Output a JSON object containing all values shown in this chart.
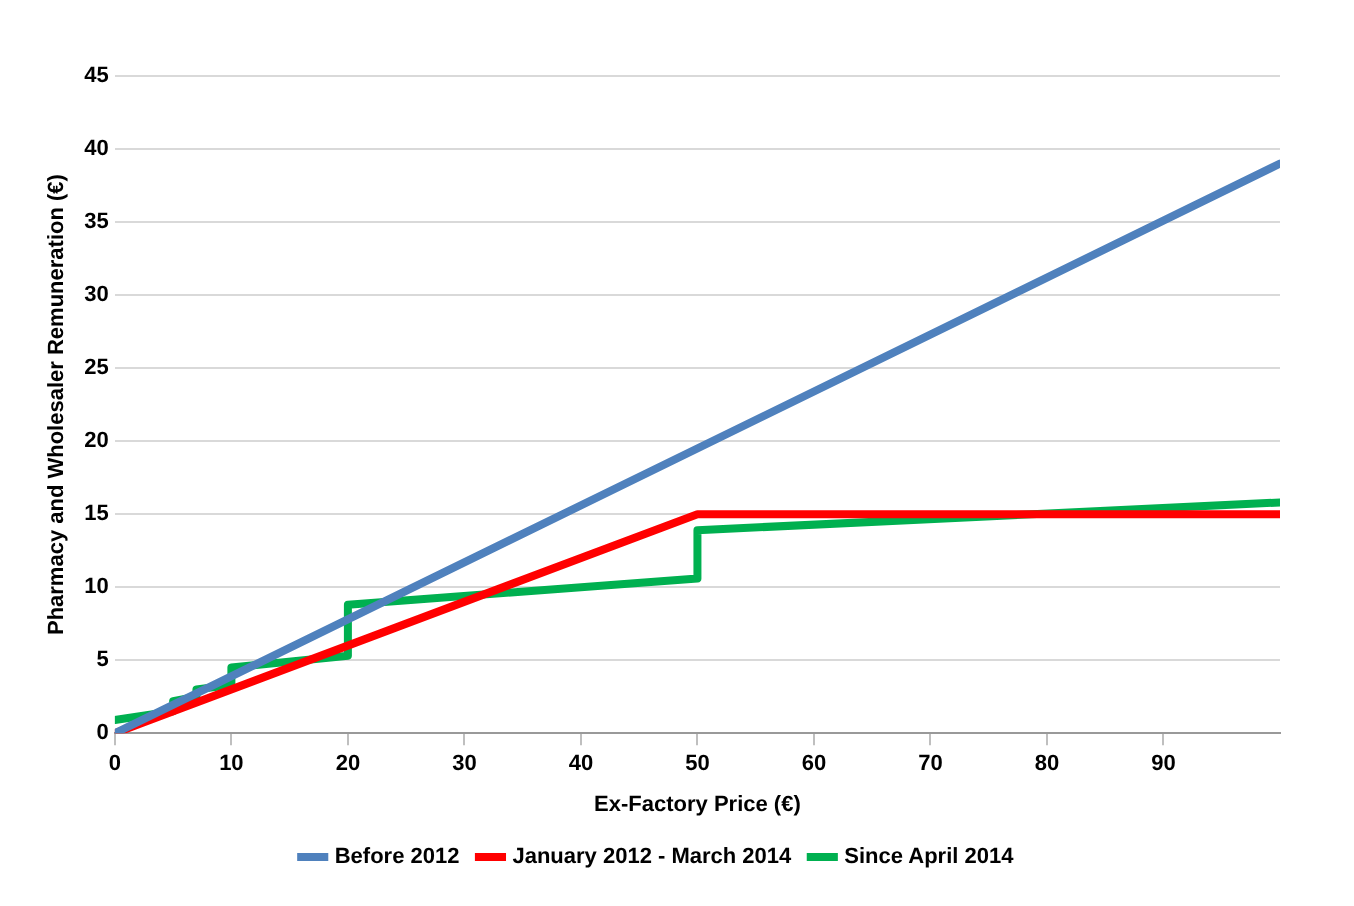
{
  "chart_data": {
    "type": "line",
    "xlabel": "Ex-Factory Price (€)",
    "ylabel": "Pharmacy and Wholesaler Remuneration (€)",
    "xlim": [
      0,
      100
    ],
    "xticks": [
      0,
      10,
      20,
      30,
      40,
      50,
      60,
      70,
      80,
      90
    ],
    "ylim": [
      0,
      45
    ],
    "yticks": [
      0,
      5,
      10,
      15,
      20,
      25,
      30,
      35,
      40,
      45
    ],
    "grid": "y",
    "legend": "bottom",
    "marker": "none",
    "line_style": "solid",
    "series": [
      {
        "name": "Before 2012",
        "color": "#4f81bd",
        "x": [
          0,
          100
        ],
        "values": [
          0,
          39
        ]
      },
      {
        "name": "January 2012 - March 2014",
        "color": "#ff0000",
        "x": [
          0,
          50,
          100
        ],
        "values": [
          0,
          15,
          15
        ]
      },
      {
        "name": "Since April 2014",
        "color": "#00b050",
        "x": [
          0,
          5,
          5,
          7,
          7,
          10,
          10,
          20,
          20,
          50,
          50,
          100
        ],
        "values": [
          0.9,
          1.5,
          2.2,
          2.5,
          3.0,
          3.3,
          4.5,
          5.3,
          8.8,
          10.6,
          13.9,
          15.8
        ]
      }
    ]
  }
}
